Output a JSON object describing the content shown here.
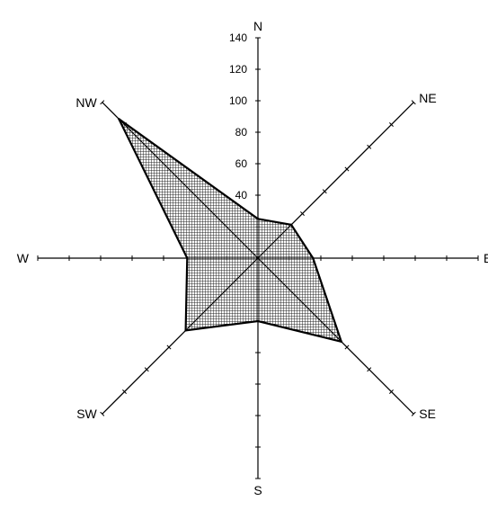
{
  "chart_data": {
    "type": "radar",
    "directions": [
      "N",
      "NE",
      "E",
      "SE",
      "S",
      "SW",
      "W",
      "NW"
    ],
    "values": [
      25,
      30,
      35,
      75,
      40,
      65,
      45,
      125
    ],
    "radial_ticks": [
      20,
      40,
      60,
      80,
      100,
      120,
      140
    ],
    "radial_tick_labels": [
      "40",
      "60",
      "80",
      "100",
      "120",
      "140"
    ],
    "rmax": 140,
    "fill_pattern": "crosshatch",
    "fill_color": "#000000",
    "line_color": "#000000",
    "background": "#ffffff"
  }
}
